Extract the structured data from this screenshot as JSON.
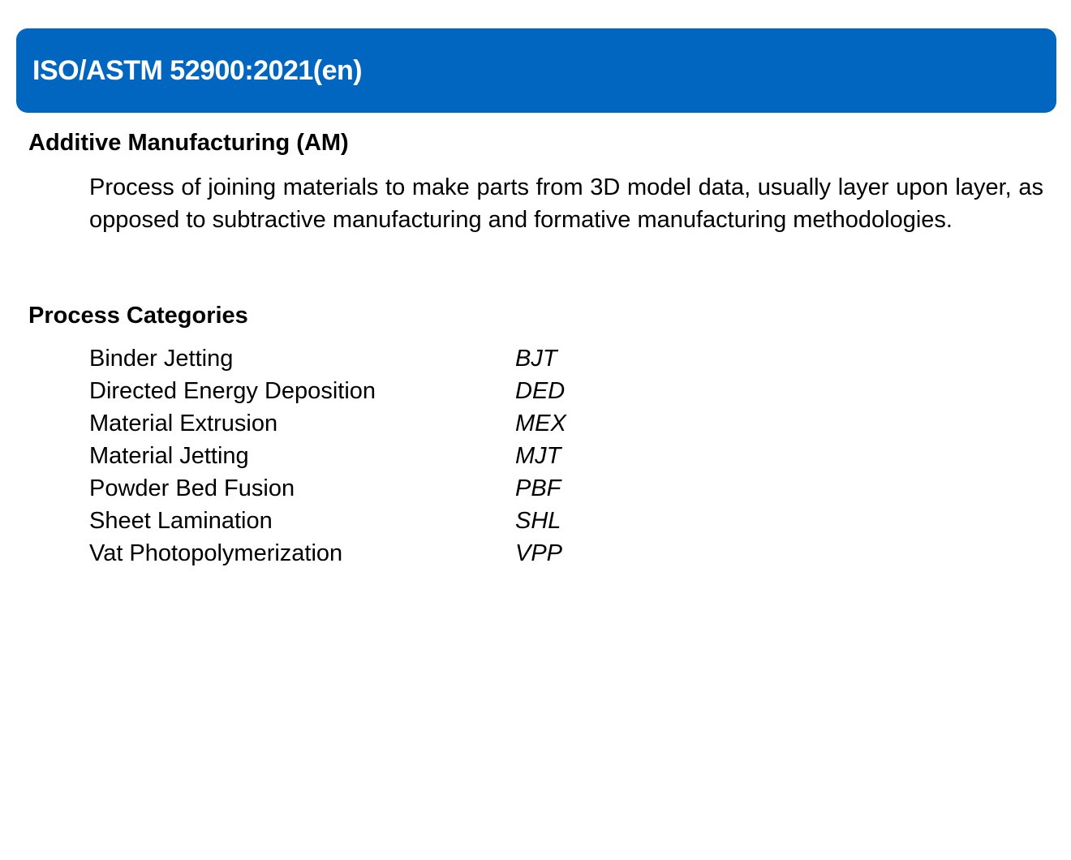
{
  "header": {
    "title": "ISO/ASTM 52900:2021(en)",
    "background_color": "#0066BF"
  },
  "definition_section": {
    "heading": "Additive Manufacturing (AM)",
    "text": "Process of joining materials to make parts from 3D model data, usually layer upon layer, as opposed to subtractive manufacturing and formative manufacturing methodologies."
  },
  "process_categories": {
    "heading": "Process Categories",
    "items": [
      {
        "name": "Binder Jetting",
        "abbreviation": "BJT"
      },
      {
        "name": "Directed Energy Deposition",
        "abbreviation": "DED"
      },
      {
        "name": "Material Extrusion",
        "abbreviation": "MEX"
      },
      {
        "name": "Material Jetting",
        "abbreviation": "MJT"
      },
      {
        "name": "Powder Bed Fusion",
        "abbreviation": "PBF"
      },
      {
        "name": "Sheet Lamination",
        "abbreviation": "SHL"
      },
      {
        "name": "Vat Photopolymerization",
        "abbreviation": "VPP"
      }
    ]
  }
}
